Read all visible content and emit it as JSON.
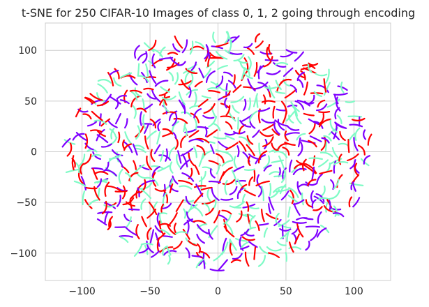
{
  "chart_data": {
    "type": "scatter",
    "title": "t-SNE for 250 CIFAR-10 Images of class 0, 1, 2 going through encoding",
    "xlabel": "",
    "ylabel": "",
    "xlim": [
      -127,
      127
    ],
    "ylim": [
      -127,
      127
    ],
    "x_ticks": [
      -100,
      -50,
      0,
      50,
      100
    ],
    "y_ticks": [
      -100,
      -50,
      0,
      50,
      100
    ],
    "x_tick_labels": [
      "−100",
      "−50",
      "0",
      "50",
      "100"
    ],
    "y_tick_labels": [
      "−100",
      "−50",
      "0",
      "50",
      "100"
    ],
    "grid": true,
    "legend": "none",
    "marker": "short curved trajectory segments",
    "classes": [
      {
        "class": 0,
        "color": "#7f00ff"
      },
      {
        "class": 1,
        "color": "#7ffbc6"
      },
      {
        "class": 2,
        "color": "#ff0000"
      }
    ],
    "points_per_class": 250,
    "point_extent_radius": 112,
    "point_center": [
      0,
      0
    ]
  }
}
